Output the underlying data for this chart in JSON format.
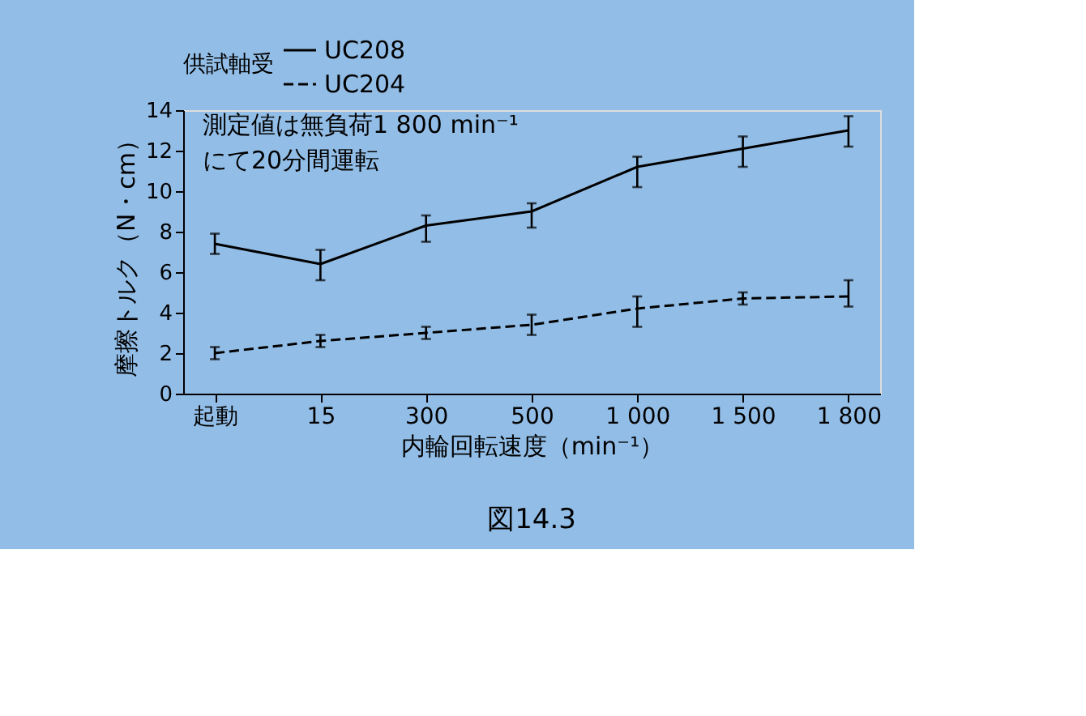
{
  "chart_data": {
    "type": "line",
    "categories": [
      "起動",
      "15",
      "300",
      "500",
      "1 000",
      "1 500",
      "1 800"
    ],
    "series": [
      {
        "name": "UC208",
        "color": "#000000",
        "line_style": "solid",
        "values": [
          7.4,
          6.4,
          8.3,
          9.0,
          11.2,
          12.1,
          13.0
        ],
        "errors": [
          [
            6.9,
            7.9
          ],
          [
            5.6,
            7.1
          ],
          [
            7.5,
            8.8
          ],
          [
            8.2,
            9.4
          ],
          [
            10.2,
            11.7
          ],
          [
            11.2,
            12.7
          ],
          [
            12.2,
            13.7
          ]
        ]
      },
      {
        "name": "UC204",
        "color": "#000000",
        "line_style": "dashed",
        "values": [
          2.0,
          2.6,
          3.0,
          3.4,
          4.2,
          4.7,
          4.8
        ],
        "errors": [
          [
            1.7,
            2.3
          ],
          [
            2.3,
            2.9
          ],
          [
            2.7,
            3.3
          ],
          [
            2.9,
            3.9
          ],
          [
            3.3,
            4.8
          ],
          [
            4.4,
            5.0
          ],
          [
            4.3,
            5.6
          ]
        ]
      }
    ],
    "legend_title": "供試軸受",
    "legend": "top",
    "xlabel": "内輪回転速度（min⁻¹）",
    "ylabel": "摩擦トルク（N・cm）",
    "ylim": [
      0,
      14
    ],
    "yticks": [
      0,
      2,
      4,
      6,
      8,
      10,
      12,
      14
    ],
    "grid": false,
    "marker": "none",
    "annotations": [
      "測定値は無負荷1 800 min⁻¹\nにて20分間運転",
      "図14.3"
    ]
  }
}
